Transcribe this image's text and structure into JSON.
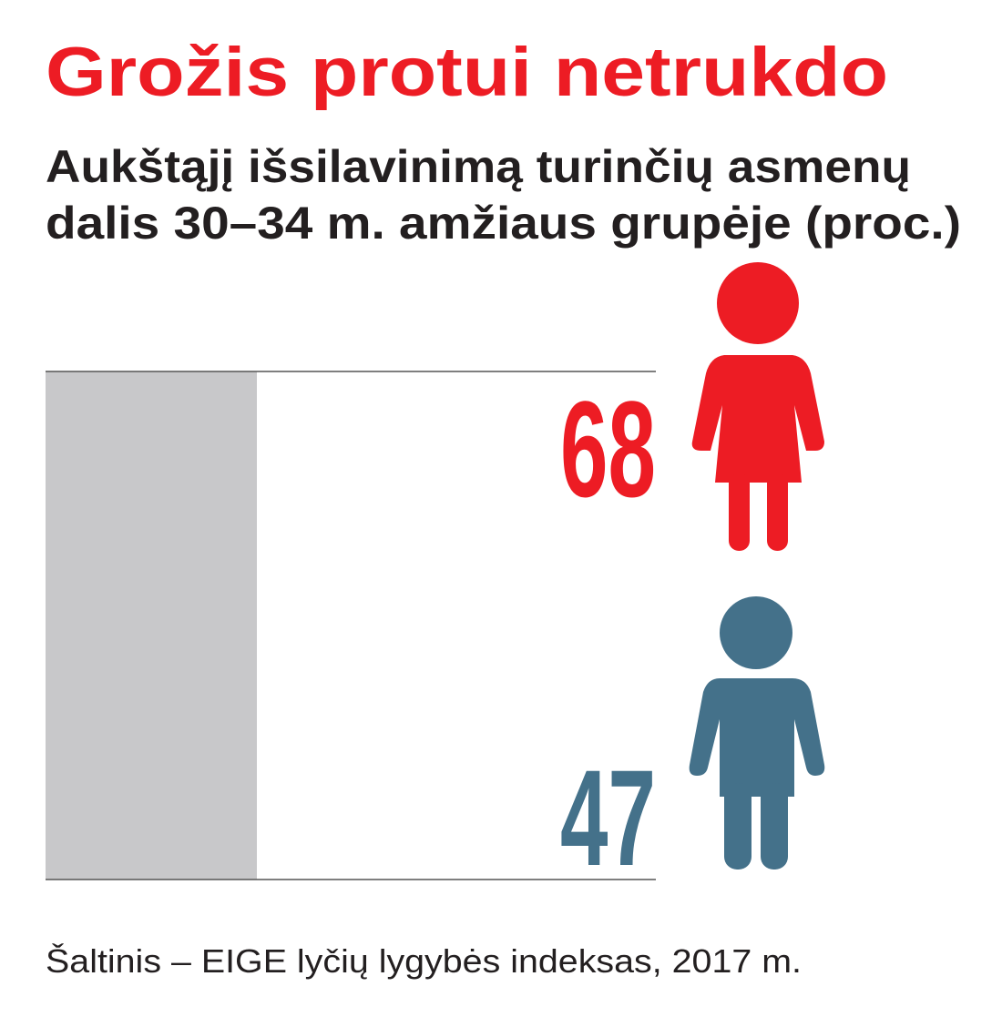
{
  "chart_data": {
    "type": "pictograph",
    "title": "Grožis protui netrukdo",
    "subtitle": [
      "Aukštąjį išsilavinimą turinčių asmenų",
      "dalis 30–34 m. amžiaus grupėje (proc.)"
    ],
    "values": [
      68,
      47
    ],
    "colors": [
      "#ed1c24",
      "#44718a"
    ],
    "source": "Šaltinis – EIGE lyčių lygybės indeksas, 2017 m."
  }
}
